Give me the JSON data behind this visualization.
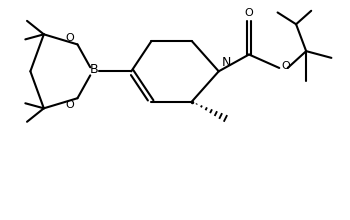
{
  "bg_color": "#ffffff",
  "line_color": "#000000",
  "lw": 1.5,
  "fig_width": 3.5,
  "fig_height": 2.2,
  "dpi": 100,
  "xlim": [
    0,
    10
  ],
  "ylim": [
    0,
    6.5
  ]
}
